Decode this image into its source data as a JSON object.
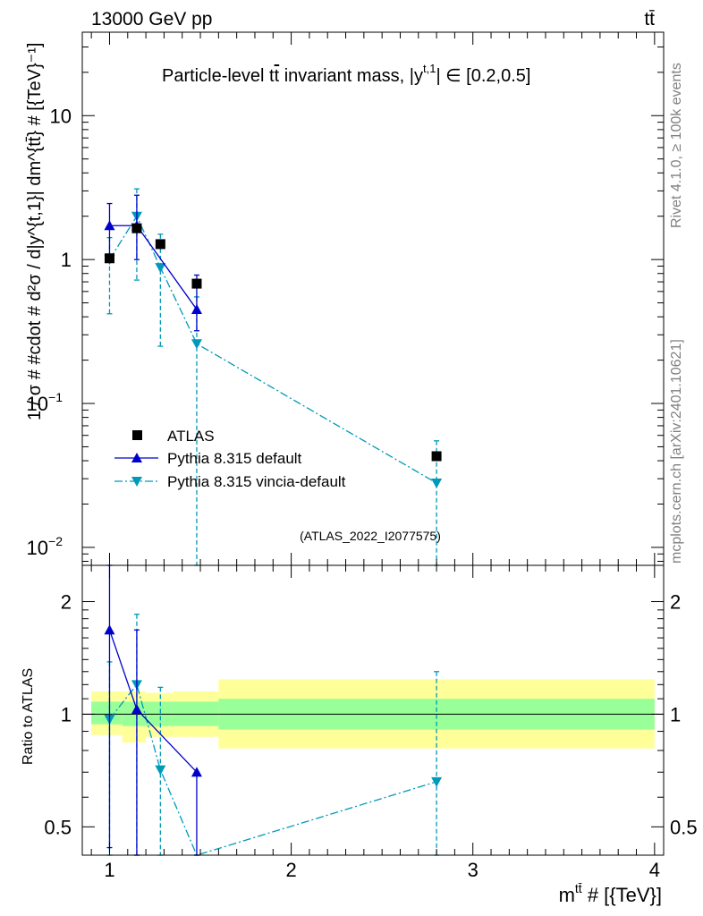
{
  "header": {
    "left": "13000 GeV pp",
    "right": "tt̄"
  },
  "side_labels": {
    "rivet": "Rivet 4.1.0, ≥ 100k events",
    "mcplots": "mcplots.cern.ch [arXiv:2401.10621]"
  },
  "colors": {
    "atlas": "#000000",
    "pythia_default": "#0000cc",
    "pythia_vincia": "#0099b8",
    "band_inner": "#99ff99",
    "band_outer": "#ffff99"
  },
  "chart_data": [
    {
      "type": "scatter",
      "title": "Particle-level tt̄ invariant mass, |y^{t,1}| ∈ [0.2,0.5]",
      "title_parts": {
        "prefix": "Particle-level t",
        "tbar": "t",
        "mid": " invariant mass, |y",
        "sup": "t,1",
        "suffix": "| ∈ [0.2,0.5]"
      },
      "ylabel": "1 / σ # #cdot # d²σ / d|y^{t,1}| dm^{tt̄} # [{TeV}⁻¹]",
      "ylabel_text": "1 / σ # #cdot # d²σ / d|y^{t,1}| dm^{tt̄} # [{TeV}⁻¹]",
      "yscale": "log",
      "ylim": [
        0.0075,
        38
      ],
      "xlim": [
        0.85,
        4.05
      ],
      "yticks": [
        {
          "value": 0.01,
          "base": "10",
          "exp": "−2"
        },
        {
          "value": 0.1,
          "base": "10",
          "exp": "−1"
        },
        {
          "value": 1,
          "base": "1",
          "exp": ""
        },
        {
          "value": 10,
          "base": "10",
          "exp": ""
        }
      ],
      "legend_position": "middle-left",
      "watermark": "(ATLAS_2022_I2077575)",
      "series": [
        {
          "name": "ATLAS",
          "marker": "square",
          "x": [
            1.0,
            1.15,
            1.28,
            1.48,
            2.8
          ],
          "y": [
            1.02,
            1.65,
            1.28,
            0.68,
            0.043
          ],
          "yerr_lo": [
            0.0,
            0.0,
            0.0,
            0.0,
            0.0
          ],
          "yerr_hi": [
            0.0,
            0.0,
            0.0,
            0.0,
            0.0
          ]
        },
        {
          "name": "Pythia 8.315 default",
          "marker": "triangle-up",
          "line": "solid",
          "x": [
            1.0,
            1.15,
            1.48
          ],
          "y": [
            1.72,
            1.72,
            0.45
          ],
          "yerr_lo": [
            1.0,
            1.0,
            0.32
          ],
          "yerr_hi": [
            2.45,
            2.8,
            0.78
          ]
        },
        {
          "name": "Pythia 8.315 vincia-default",
          "marker": "triangle-down",
          "line": "dashdot",
          "x": [
            1.0,
            1.15,
            1.28,
            1.48,
            2.8
          ],
          "y": [
            1.0,
            2.0,
            0.88,
            0.26,
            0.028
          ],
          "yerr_lo": [
            0.42,
            0.72,
            0.25,
            0.005,
            0.005
          ],
          "yerr_hi": [
            1.42,
            3.1,
            1.5,
            0.55,
            0.055
          ]
        }
      ]
    },
    {
      "type": "scatter",
      "title": "",
      "xlabel": "m^{tt̄} # [{TeV}]",
      "xlabel_parts": {
        "m": "m",
        "sup": "tt̄",
        "rest": " # [{TeV}]"
      },
      "ylabel": "Ratio to ATLAS",
      "yscale": "log",
      "ylim": [
        0.42,
        2.5
      ],
      "xlim": [
        0.85,
        4.05
      ],
      "xticks": [
        {
          "value": 1,
          "label": "1"
        },
        {
          "value": 2,
          "label": "2"
        },
        {
          "value": 3,
          "label": "3"
        },
        {
          "value": 4,
          "label": "4"
        }
      ],
      "yticks": [
        {
          "value": 0.5,
          "label": "0.5"
        },
        {
          "value": 1,
          "label": "1"
        },
        {
          "value": 2,
          "label": "2"
        }
      ],
      "bands": [
        {
          "x0": 0.9,
          "x1": 1.07,
          "inner": [
            0.94,
            1.08
          ],
          "outer": [
            0.88,
            1.15
          ]
        },
        {
          "x0": 1.07,
          "x1": 1.2,
          "inner": [
            0.93,
            1.08
          ],
          "outer": [
            0.84,
            1.15
          ]
        },
        {
          "x0": 1.2,
          "x1": 1.35,
          "inner": [
            0.93,
            1.08
          ],
          "outer": [
            0.87,
            1.14
          ]
        },
        {
          "x0": 1.35,
          "x1": 1.6,
          "inner": [
            0.93,
            1.08
          ],
          "outer": [
            0.87,
            1.15
          ]
        },
        {
          "x0": 1.6,
          "x1": 4.0,
          "inner": [
            0.91,
            1.1
          ],
          "outer": [
            0.81,
            1.24
          ]
        }
      ],
      "series": [
        {
          "name": "Pythia 8.315 default",
          "marker": "triangle-up",
          "line": "solid",
          "x": [
            1.0,
            1.15,
            1.48
          ],
          "y": [
            1.68,
            1.03,
            0.7
          ],
          "yerr_lo": [
            0.44,
            0.4,
            0.42
          ],
          "yerr_hi": [
            2.55,
            1.68,
            0.7
          ]
        },
        {
          "name": "Pythia 8.315 vincia-default",
          "marker": "triangle-down",
          "line": "dashdot",
          "x": [
            1.0,
            1.15,
            1.28,
            1.48,
            2.8
          ],
          "y": [
            0.97,
            1.2,
            0.71,
            0.4,
            0.66
          ],
          "yerr_lo": [
            0.42,
            0.42,
            0.42,
            0.42,
            0.42
          ],
          "yerr_hi": [
            1.38,
            1.85,
            1.18,
            0.4,
            1.3
          ]
        }
      ]
    }
  ]
}
